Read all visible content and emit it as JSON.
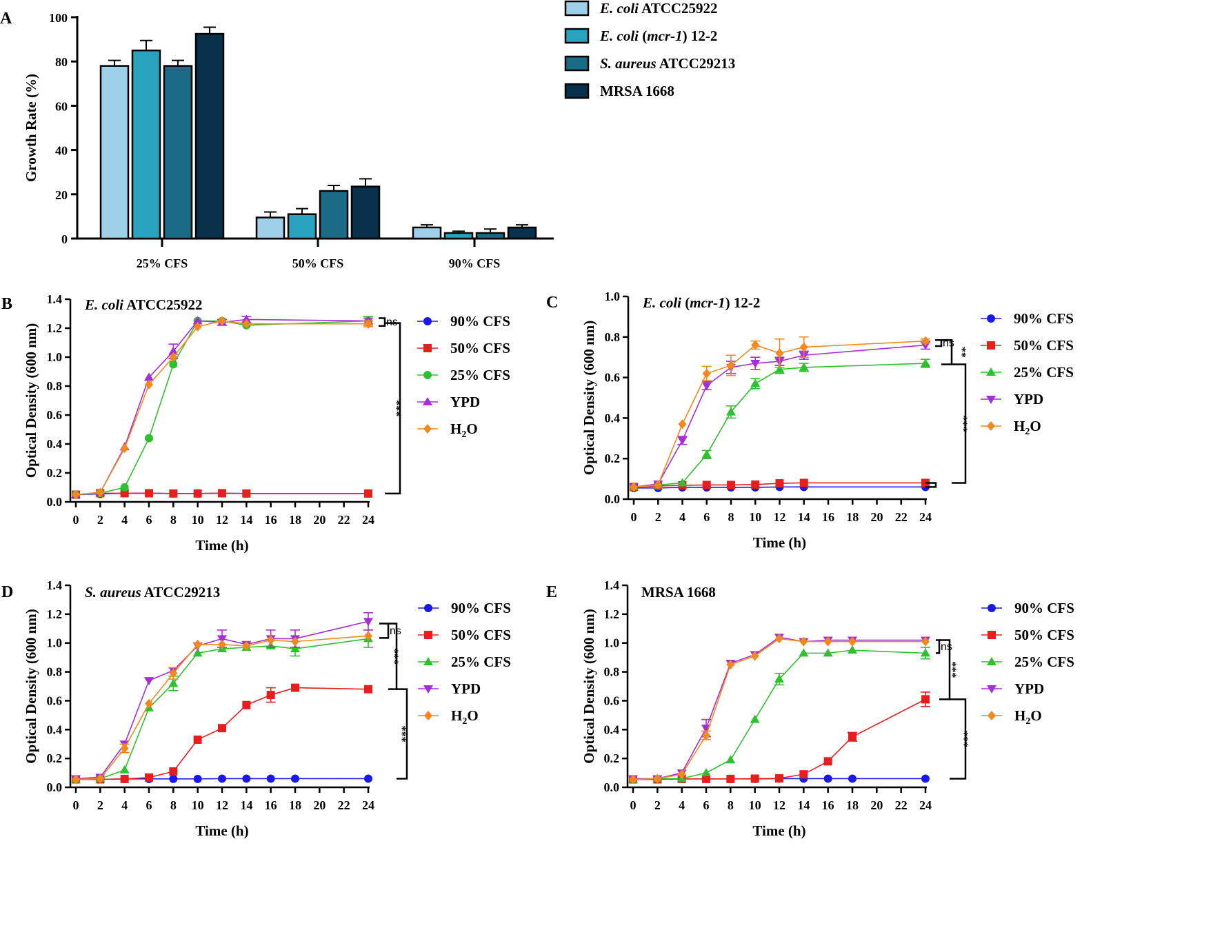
{
  "chart_data": [
    {
      "panel": "A",
      "type": "bar",
      "ylabel": "Growth Rate (%)",
      "ylim": [
        0,
        100
      ],
      "yticks": [
        0,
        20,
        40,
        60,
        80,
        100
      ],
      "categories": [
        "25% CFS",
        "50% CFS",
        "90% CFS"
      ],
      "legend_position": "top-right",
      "series": [
        {
          "name_italic": "E. coli",
          "name_rest": " ATCC25922",
          "color": "#9dcfe9",
          "values": [
            78,
            9.5,
            5
          ],
          "errors": [
            2.5,
            2.5,
            1.2
          ]
        },
        {
          "name_italic": "E. coli",
          "name_mid": " (",
          "name_italic2": "mcr-1",
          "name_rest": ") 12-2",
          "color": "#29a3bd",
          "values": [
            85,
            11,
            2.5
          ],
          "errors": [
            4.5,
            2.5,
            0.8
          ]
        },
        {
          "name_italic": "S. aureus",
          "name_rest": " ATCC29213",
          "color": "#1b6b87",
          "values": [
            78,
            21.5,
            2.5
          ],
          "errors": [
            2.5,
            2.5,
            1.8
          ]
        },
        {
          "name_italic": "",
          "name_rest": "MRSA 1668",
          "color": "#07304a",
          "values": [
            92.5,
            23.5,
            5
          ],
          "errors": [
            3,
            3.5,
            1.2
          ]
        }
      ]
    },
    {
      "panel": "B",
      "type": "line",
      "title_italic": "E. coli",
      "title_rest": " ATCC25922",
      "xlabel": "Time (h)",
      "ylabel": "Optical Density (600 nm)",
      "xlim": [
        0,
        24
      ],
      "ylim": [
        0,
        1.4
      ],
      "xticks": [
        0,
        2,
        4,
        6,
        8,
        10,
        12,
        14,
        16,
        18,
        20,
        22,
        24
      ],
      "yticks": [
        0.0,
        0.2,
        0.4,
        0.6,
        0.8,
        1.0,
        1.2,
        1.4
      ],
      "series": [
        {
          "name": "90% CFS",
          "marker": "circle",
          "color": "#1a1ae6",
          "x": [
            0,
            2,
            4,
            6,
            8,
            10,
            12,
            14,
            24
          ],
          "y": [
            0.05,
            0.055,
            0.06,
            0.06,
            0.058,
            0.058,
            0.06,
            0.058,
            0.058
          ],
          "err": [
            0,
            0,
            0,
            0,
            0,
            0,
            0,
            0,
            0
          ]
        },
        {
          "name": "50% CFS",
          "marker": "square",
          "color": "#e61e1e",
          "x": [
            0,
            2,
            4,
            6,
            8,
            10,
            12,
            14,
            24
          ],
          "y": [
            0.05,
            0.06,
            0.06,
            0.06,
            0.058,
            0.058,
            0.06,
            0.058,
            0.058
          ],
          "err": [
            0,
            0,
            0,
            0,
            0,
            0,
            0,
            0,
            0
          ]
        },
        {
          "name": "25% CFS",
          "marker": "circle",
          "color": "#2fbf2f",
          "x": [
            0,
            2,
            4,
            6,
            8,
            10,
            12,
            14,
            24
          ],
          "y": [
            0.05,
            0.06,
            0.1,
            0.44,
            0.95,
            1.25,
            1.25,
            1.22,
            1.25
          ],
          "err": [
            0,
            0,
            0,
            0,
            0,
            0,
            0,
            0,
            0.03
          ]
        },
        {
          "name": "YPD",
          "marker": "triangle-up",
          "color": "#a32fd6",
          "x": [
            0,
            2,
            4,
            6,
            8,
            10,
            12,
            14,
            24
          ],
          "y": [
            0.05,
            0.065,
            0.38,
            0.86,
            1.04,
            1.25,
            1.24,
            1.26,
            1.25
          ],
          "err": [
            0,
            0,
            0,
            0,
            0.05,
            0,
            0.02,
            0.02,
            0.02
          ]
        },
        {
          "name": "H2O",
          "marker": "diamond",
          "color": "#f08a1e",
          "x": [
            0,
            2,
            4,
            6,
            8,
            10,
            12,
            14,
            24
          ],
          "y": [
            0.05,
            0.065,
            0.37,
            0.81,
            1.0,
            1.21,
            1.25,
            1.23,
            1.23
          ],
          "err": [
            0,
            0,
            0,
            0,
            0,
            0,
            0,
            0,
            0.02
          ]
        }
      ],
      "significance": [
        {
          "label": "ns",
          "from": "25% CFS",
          "to": "H2O"
        },
        {
          "label": "***",
          "from": "H2O",
          "to": "90% CFS"
        }
      ]
    },
    {
      "panel": "C",
      "type": "line",
      "title_italic": "E. coli",
      "title_mid": " (",
      "title_italic2": "mcr-1",
      "title_rest": ") 12-2",
      "xlabel": "Time (h)",
      "ylabel": "Optical Density (600 nm)",
      "xlim": [
        0,
        24
      ],
      "ylim": [
        0,
        1.0
      ],
      "xticks": [
        0,
        2,
        4,
        6,
        8,
        10,
        12,
        14,
        16,
        18,
        20,
        22,
        24
      ],
      "yticks": [
        0.0,
        0.2,
        0.4,
        0.6,
        0.8,
        1.0
      ],
      "series": [
        {
          "name": "90% CFS",
          "marker": "circle",
          "color": "#1a1ae6",
          "x": [
            0,
            2,
            4,
            6,
            8,
            10,
            12,
            14,
            24
          ],
          "y": [
            0.055,
            0.055,
            0.058,
            0.058,
            0.058,
            0.058,
            0.06,
            0.06,
            0.06
          ],
          "err": [
            0,
            0,
            0,
            0,
            0,
            0,
            0,
            0,
            0
          ]
        },
        {
          "name": "50% CFS",
          "marker": "square",
          "color": "#e61e1e",
          "x": [
            0,
            2,
            4,
            6,
            8,
            10,
            12,
            14,
            24
          ],
          "y": [
            0.06,
            0.065,
            0.068,
            0.07,
            0.07,
            0.072,
            0.078,
            0.08,
            0.08
          ],
          "err": [
            0,
            0,
            0,
            0,
            0,
            0,
            0,
            0,
            0
          ]
        },
        {
          "name": "25% CFS",
          "marker": "triangle-up",
          "color": "#2fbf2f",
          "x": [
            0,
            2,
            4,
            6,
            8,
            10,
            12,
            14,
            24
          ],
          "y": [
            0.06,
            0.07,
            0.08,
            0.22,
            0.43,
            0.57,
            0.64,
            0.65,
            0.67
          ],
          "err": [
            0,
            0,
            0,
            0.02,
            0.03,
            0.025,
            0.02,
            0.02,
            0.02
          ]
        },
        {
          "name": "YPD",
          "marker": "triangle-down",
          "color": "#a32fd6",
          "x": [
            0,
            2,
            4,
            6,
            8,
            10,
            12,
            14,
            24
          ],
          "y": [
            0.06,
            0.075,
            0.29,
            0.56,
            0.65,
            0.67,
            0.68,
            0.71,
            0.76
          ],
          "err": [
            0,
            0,
            0.02,
            0.02,
            0.03,
            0.03,
            0.02,
            0.02,
            0.02
          ]
        },
        {
          "name": "H2O",
          "marker": "diamond",
          "color": "#f08a1e",
          "x": [
            0,
            2,
            4,
            6,
            8,
            10,
            12,
            14,
            24
          ],
          "y": [
            0.06,
            0.07,
            0.37,
            0.62,
            0.66,
            0.76,
            0.72,
            0.75,
            0.78
          ],
          "err": [
            0,
            0,
            0,
            0.035,
            0.05,
            0.02,
            0.07,
            0.05,
            0.01
          ]
        }
      ],
      "significance": [
        {
          "label": "ns",
          "from": "H2O",
          "to": "YPD"
        },
        {
          "label": "**",
          "from": "H2O",
          "to": "25% CFS"
        },
        {
          "label": "***",
          "from": "25% CFS",
          "to": "50% CFS"
        }
      ]
    },
    {
      "panel": "D",
      "type": "line",
      "title_italic": "S. aureus",
      "title_rest": " ATCC29213",
      "xlabel": "Time (h)",
      "ylabel": "Optical Density (600 nm)",
      "xlim": [
        0,
        24
      ],
      "ylim": [
        0,
        1.4
      ],
      "xticks": [
        0,
        2,
        4,
        6,
        8,
        10,
        12,
        14,
        16,
        18,
        20,
        22,
        24
      ],
      "yticks": [
        0.0,
        0.2,
        0.4,
        0.6,
        0.8,
        1.0,
        1.2,
        1.4
      ],
      "series": [
        {
          "name": "90% CFS",
          "marker": "circle",
          "color": "#1a1ae6",
          "x": [
            0,
            2,
            4,
            6,
            8,
            10,
            12,
            14,
            16,
            18,
            24
          ],
          "y": [
            0.055,
            0.055,
            0.058,
            0.058,
            0.058,
            0.058,
            0.06,
            0.06,
            0.06,
            0.06,
            0.06
          ],
          "err": [
            0,
            0,
            0,
            0,
            0,
            0,
            0,
            0,
            0,
            0,
            0
          ]
        },
        {
          "name": "50% CFS",
          "marker": "square",
          "color": "#e61e1e",
          "x": [
            0,
            2,
            4,
            6,
            8,
            10,
            12,
            14,
            16,
            18,
            24
          ],
          "y": [
            0.055,
            0.055,
            0.058,
            0.068,
            0.11,
            0.33,
            0.41,
            0.57,
            0.64,
            0.69,
            0.68
          ],
          "err": [
            0,
            0,
            0,
            0,
            0,
            0,
            0,
            0,
            0.05,
            0,
            0
          ]
        },
        {
          "name": "25% CFS",
          "marker": "triangle-up",
          "color": "#2fbf2f",
          "x": [
            0,
            2,
            4,
            6,
            8,
            10,
            12,
            14,
            16,
            18,
            24
          ],
          "y": [
            0.055,
            0.06,
            0.12,
            0.55,
            0.72,
            0.93,
            0.96,
            0.97,
            0.98,
            0.96,
            1.03
          ],
          "err": [
            0,
            0,
            0,
            0,
            0.05,
            0,
            0,
            0,
            0,
            0.05,
            0.06
          ]
        },
        {
          "name": "YPD",
          "marker": "triangle-down",
          "color": "#a32fd6",
          "x": [
            0,
            2,
            4,
            6,
            8,
            10,
            12,
            14,
            16,
            18,
            24
          ],
          "y": [
            0.06,
            0.07,
            0.3,
            0.74,
            0.81,
            0.98,
            1.03,
            0.99,
            1.03,
            1.03,
            1.15
          ],
          "err": [
            0,
            0,
            0,
            0,
            0,
            0,
            0.06,
            0,
            0.06,
            0.06,
            0.06
          ]
        },
        {
          "name": "H2O",
          "marker": "diamond",
          "color": "#f08a1e",
          "x": [
            0,
            2,
            4,
            6,
            8,
            10,
            12,
            14,
            16,
            18,
            24
          ],
          "y": [
            0.055,
            0.06,
            0.27,
            0.58,
            0.79,
            0.99,
            0.99,
            0.98,
            1.02,
            1.01,
            1.05
          ],
          "err": [
            0,
            0,
            0.03,
            0,
            0.04,
            0,
            0,
            0,
            0,
            0,
            0
          ]
        }
      ],
      "significance": [
        {
          "label": "ns",
          "from": "25% CFS",
          "to": "H2O"
        },
        {
          "label": "***",
          "from": "H2O",
          "to": "50% CFS"
        },
        {
          "label": "***",
          "from": "50% CFS",
          "to": "90% CFS"
        }
      ]
    },
    {
      "panel": "E",
      "type": "line",
      "title_italic": "",
      "title_rest": "MRSA 1668",
      "xlabel": "Time (h)",
      "ylabel": "Optical Density (600 nm)",
      "xlim": [
        0,
        24
      ],
      "ylim": [
        0,
        1.4
      ],
      "xticks": [
        0,
        2,
        4,
        6,
        8,
        10,
        12,
        14,
        16,
        18,
        20,
        22,
        24
      ],
      "yticks": [
        0.0,
        0.2,
        0.4,
        0.6,
        0.8,
        1.0,
        1.2,
        1.4
      ],
      "series": [
        {
          "name": "90% CFS",
          "marker": "circle",
          "color": "#1a1ae6",
          "x": [
            0,
            2,
            4,
            6,
            8,
            10,
            12,
            14,
            16,
            18,
            24
          ],
          "y": [
            0.055,
            0.055,
            0.058,
            0.058,
            0.058,
            0.058,
            0.06,
            0.06,
            0.06,
            0.06,
            0.06
          ],
          "err": [
            0,
            0,
            0,
            0,
            0,
            0,
            0,
            0,
            0,
            0,
            0
          ]
        },
        {
          "name": "50% CFS",
          "marker": "square",
          "color": "#e61e1e",
          "x": [
            0,
            2,
            4,
            6,
            8,
            10,
            12,
            14,
            16,
            18,
            24
          ],
          "y": [
            0.055,
            0.055,
            0.058,
            0.058,
            0.058,
            0.06,
            0.062,
            0.09,
            0.18,
            0.35,
            0.61
          ],
          "err": [
            0,
            0,
            0,
            0,
            0,
            0,
            0,
            0,
            0,
            0.03,
            0.05
          ]
        },
        {
          "name": "25% CFS",
          "marker": "triangle-up",
          "color": "#2fbf2f",
          "x": [
            0,
            2,
            4,
            6,
            8,
            10,
            12,
            14,
            16,
            18,
            24
          ],
          "y": [
            0.055,
            0.06,
            0.06,
            0.1,
            0.19,
            0.47,
            0.75,
            0.93,
            0.93,
            0.95,
            0.93
          ],
          "err": [
            0,
            0,
            0,
            0,
            0,
            0,
            0.04,
            0,
            0,
            0,
            0.04
          ]
        },
        {
          "name": "YPD",
          "marker": "triangle-down",
          "color": "#a32fd6",
          "x": [
            0,
            2,
            4,
            6,
            8,
            10,
            12,
            14,
            16,
            18,
            24
          ],
          "y": [
            0.06,
            0.06,
            0.1,
            0.41,
            0.86,
            0.92,
            1.04,
            1.01,
            1.02,
            1.02,
            1.02
          ],
          "err": [
            0,
            0,
            0,
            0.06,
            0,
            0,
            0,
            0,
            0,
            0,
            0
          ]
        },
        {
          "name": "H2O",
          "marker": "diamond",
          "color": "#f08a1e",
          "x": [
            0,
            2,
            4,
            6,
            8,
            10,
            12,
            14,
            16,
            18,
            24
          ],
          "y": [
            0.055,
            0.06,
            0.09,
            0.36,
            0.85,
            0.91,
            1.03,
            1.01,
            1.01,
            1.01,
            1.01
          ],
          "err": [
            0,
            0,
            0,
            0.03,
            0,
            0,
            0,
            0,
            0,
            0,
            0
          ]
        }
      ],
      "significance": [
        {
          "label": "ns",
          "from": "YPD",
          "to": "25% CFS"
        },
        {
          "label": "***",
          "from": "YPD",
          "to": "50% CFS"
        },
        {
          "label": "***",
          "from": "50% CFS",
          "to": "90% CFS"
        }
      ]
    }
  ]
}
